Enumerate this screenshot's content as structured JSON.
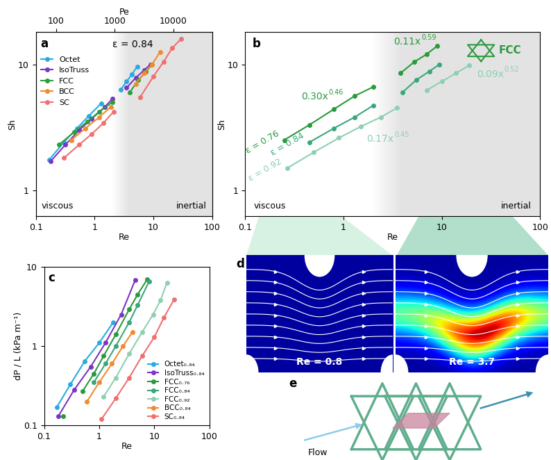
{
  "chart_data": [
    {
      "panel_label": "a",
      "type": "line",
      "x_label": "Re",
      "y_label": "Sh",
      "x2_label": "Pe",
      "annotations": [
        "ε = 0.84"
      ],
      "region_labels": [
        "viscous",
        "inertial"
      ],
      "log": true,
      "xlim": [
        0.1,
        100
      ],
      "xticks": [
        0.1,
        1,
        10,
        100
      ],
      "ylim": [
        0.62,
        18
      ],
      "yticks": [
        1,
        10
      ],
      "x2lim": [
        45.5,
        45500
      ],
      "x2ticks": [
        100,
        1000,
        10000
      ],
      "shade_range": [
        2,
        4
      ],
      "legend": "upper left",
      "marker": "o",
      "line_style": "solid",
      "series": [
        {
          "name": "Octet",
          "color": "#29abe2",
          "x": [
            0.17,
            0.3,
            0.5,
            0.8,
            1.3,
            null,
            2.8,
            3.5,
            4.3,
            5.3
          ],
          "values": [
            1.75,
            2.4,
            3.1,
            3.9,
            4.9,
            null,
            6.3,
            7.3,
            8.3,
            9.6
          ]
        },
        {
          "name": "IsoTruss",
          "color": "#7b35c4",
          "x": [
            0.18,
            0.32,
            0.55,
            0.9,
            1.5,
            2.0,
            null,
            3.5,
            5,
            7,
            9
          ],
          "values": [
            1.7,
            2.3,
            3.0,
            3.7,
            4.6,
            5.3,
            null,
            6.5,
            7.8,
            9,
            10
          ]
        },
        {
          "name": "FCC",
          "color": "#2e9e3e",
          "x": [
            0.25,
            0.45,
            0.75,
            1.2,
            2.0,
            null,
            4,
            5.5,
            7.5,
            9.5
          ],
          "values": [
            2.3,
            2.9,
            3.5,
            4.2,
            5.0,
            null,
            6.0,
            7.5,
            8.7,
            10
          ]
        },
        {
          "name": "BCC",
          "color": "#f28a30",
          "x": [
            0.4,
            0.7,
            1.2,
            1.9,
            null,
            5,
            7,
            9.5,
            13
          ],
          "values": [
            2.5,
            3.1,
            3.8,
            4.6,
            null,
            7,
            8.5,
            10,
            12.5
          ]
        },
        {
          "name": "SC",
          "color": "#f07070",
          "x": [
            0.3,
            0.55,
            0.9,
            1.4,
            2.1,
            null,
            6,
            10,
            15,
            21,
            30
          ],
          "values": [
            1.8,
            2.3,
            2.8,
            3.4,
            4.2,
            null,
            5.5,
            8,
            10.5,
            13.5,
            16
          ]
        }
      ]
    },
    {
      "panel_label": "b",
      "type": "line",
      "x_label": "Re",
      "y_label": "Sh",
      "icon_label": "FCC",
      "region_labels": [
        "viscous",
        "inertial"
      ],
      "log": true,
      "xlim": [
        0.1,
        100
      ],
      "xticks": [
        0.1,
        1,
        10,
        100
      ],
      "ylim": [
        0.62,
        18
      ],
      "yticks": [
        1,
        10
      ],
      "shade_range": [
        2,
        4
      ],
      "marker": "o",
      "line_style": "solid",
      "series": [
        {
          "name": "ε = 0.76",
          "color": "#2a9a3c",
          "x": [
            0.25,
            0.45,
            0.8,
            1.3,
            2.0,
            null,
            3.8,
            5.3,
            7,
            9
          ],
          "values": [
            2.5,
            3.3,
            4.4,
            5.6,
            6.6,
            null,
            8.5,
            10.5,
            12,
            14
          ],
          "fit_labels": [
            {
              "text": "0.30x",
              "exponent": "0.46"
            },
            {
              "text": "0.11x",
              "exponent": "0.59"
            }
          ]
        },
        {
          "name": "ε = 0.84",
          "color": "#3aa77a",
          "x": [
            0.45,
            0.8,
            1.3,
            2.0,
            null,
            4,
            5.5,
            7.5,
            9.5
          ],
          "values": [
            2.4,
            3.1,
            3.8,
            4.7,
            null,
            6,
            7.5,
            8.8,
            10
          ]
        },
        {
          "name": "ε = 0.92",
          "color": "#8fcfb2",
          "x": [
            0.27,
            0.5,
            0.9,
            1.5,
            2.4,
            3.5,
            null,
            7,
            10,
            14,
            19
          ],
          "values": [
            1.5,
            2.0,
            2.6,
            3.2,
            3.8,
            4.5,
            null,
            6.2,
            7.3,
            8.5,
            9.8
          ],
          "fit_labels": [
            {
              "text": "0.17x",
              "exponent": "0.45"
            },
            {
              "text": "0.09x",
              "exponent": "0.52"
            }
          ]
        }
      ]
    },
    {
      "panel_label": "c",
      "type": "line",
      "x_label": "Re",
      "y_label": "dP / L (kPa m⁻¹)",
      "log": true,
      "xlim": [
        0.1,
        100
      ],
      "xticks": [
        0.1,
        1,
        10,
        100
      ],
      "ylim": [
        0.1,
        10
      ],
      "yticks": [
        0.1,
        1,
        10
      ],
      "legend": "lower right",
      "marker": "o",
      "line_style": "solid",
      "series": [
        {
          "name": "Octet₀.₈₄",
          "color": "#29abe2",
          "x": [
            0.17,
            0.3,
            0.55,
            1.0,
            1.8
          ],
          "values": [
            0.17,
            0.33,
            0.65,
            1.1,
            2.0
          ]
        },
        {
          "name": "IsoTruss₀.₈₄",
          "color": "#7b35c4",
          "x": [
            0.18,
            0.35,
            0.7,
            1.3,
            2.5,
            4.5
          ],
          "values": [
            0.13,
            0.28,
            0.55,
            1.1,
            2.5,
            6.8
          ]
        },
        {
          "name": "FCC₀.₇₆",
          "color": "#2a9a3c",
          "x": [
            0.22,
            null,
            0.5,
            0.8,
            1.2,
            2,
            3.5,
            5,
            7.5
          ],
          "values": [
            0.13,
            null,
            0.27,
            0.45,
            0.75,
            1.4,
            2.9,
            4.5,
            7
          ]
        },
        {
          "name": "FCC₀.₈₄",
          "color": "#3aa77a",
          "x": [
            0.8,
            1.3,
            2,
            3.5,
            5,
            8
          ],
          "values": [
            0.35,
            0.6,
            1,
            2,
            3.3,
            6.5
          ]
        },
        {
          "name": "FCC₀.₉₂",
          "color": "#8fcfb2",
          "x": [
            1.2,
            2,
            3.5,
            6,
            9.5,
            13,
            17
          ],
          "values": [
            0.23,
            0.4,
            0.8,
            1.5,
            2.5,
            3.8,
            6.3
          ]
        },
        {
          "name": "BCC₀.₈₄",
          "color": "#f28a30",
          "x": [
            0.6,
            1,
            1.7,
            2.7,
            4
          ],
          "values": [
            0.2,
            0.35,
            0.6,
            1,
            1.5
          ]
        },
        {
          "name": "SC₀.₈₄",
          "color": "#f07070",
          "x": [
            1.1,
            2,
            3.5,
            6,
            10,
            15,
            23
          ],
          "values": [
            0.12,
            0.22,
            0.4,
            0.75,
            1.3,
            2.3,
            3.9
          ]
        }
      ]
    }
  ],
  "diagram": {
    "d": {
      "panel_label": "d",
      "labels": [
        "Re = 0.8",
        "Re = 3.7"
      ]
    },
    "e": {
      "panel_label": "e",
      "flow_label": "Flow"
    }
  }
}
